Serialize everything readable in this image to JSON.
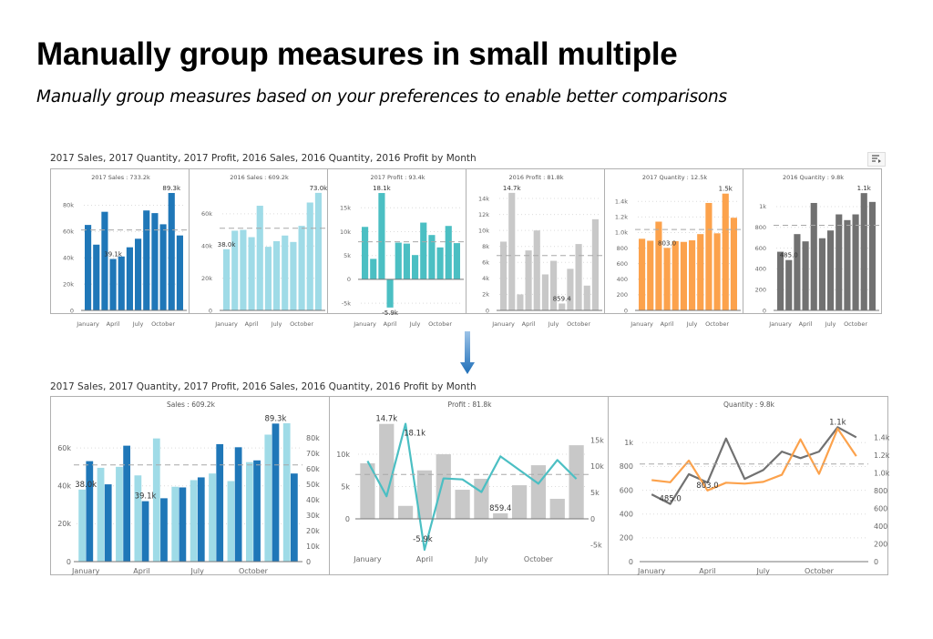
{
  "page": {
    "title": "Manually group measures in small multiple",
    "subtitle": "Manually group measures based on your preferences to enable better comparisons"
  },
  "top_visual": {
    "title": "2017 Sales, 2017 Quantity, 2017 Profit, 2016 Sales, 2016 Quantity, 2016 Profit by Month",
    "icon": "focus-mode-icon"
  },
  "arrow": {
    "icon": "arrow-down-icon",
    "color": "#1f6fb8"
  },
  "bottom_visual": {
    "title": "2017 Sales, 2017 Quantity, 2017 Profit, 2016 Sales, 2016 Quantity, 2016 Profit by Month"
  },
  "x_tick_labels": [
    {
      "index": 0,
      "label": "January"
    },
    {
      "index": 3,
      "label": "April"
    },
    {
      "index": 6,
      "label": "July"
    },
    {
      "index": 9,
      "label": "October"
    }
  ],
  "colors": {
    "sales_2017": "#1f77b8",
    "sales_2016": "#9fdbe7",
    "profit_2017": "#4bbfc3",
    "profit_2016": "#c8c8c8",
    "quantity_2017": "#fca24c",
    "quantity_2016": "#717171",
    "average_line": "#a8a8a8",
    "gridline": "#dcdcdc"
  },
  "chart_data": [
    {
      "group": "top",
      "type": "bar",
      "header": "2017 Sales :  733.2k",
      "average_line": true,
      "axes": [
        {
          "side": "left",
          "ylim": [
            0,
            90
          ],
          "ticks": [
            [
              0,
              "0"
            ],
            [
              20,
              "20k"
            ],
            [
              40,
              "40k"
            ],
            [
              60,
              "60k"
            ],
            [
              80,
              "80k"
            ]
          ]
        }
      ],
      "series": [
        {
          "name": "2017 Sales",
          "type": "bar",
          "axis": 0,
          "color": "#1f77b8",
          "values": [
            65,
            50,
            75,
            39.1,
            41,
            48,
            54.5,
            76,
            74,
            65.5,
            89.3,
            57
          ]
        }
      ],
      "data_labels": [
        {
          "series": 0,
          "index": 10,
          "text": "89.3k"
        },
        {
          "series": 0,
          "index": 3,
          "text": "39.1k"
        }
      ]
    },
    {
      "group": "top",
      "type": "bar",
      "header": "2016 Sales :  609.2k",
      "average_line": true,
      "axes": [
        {
          "side": "left",
          "ylim": [
            0,
            73.5
          ],
          "ticks": [
            [
              0,
              "0"
            ],
            [
              20,
              "20k"
            ],
            [
              40,
              "40k"
            ],
            [
              60,
              "60k"
            ]
          ]
        }
      ],
      "series": [
        {
          "name": "2016 Sales",
          "type": "bar",
          "axis": 0,
          "color": "#9fdbe7",
          "values": [
            38,
            49.5,
            50,
            45.5,
            65,
            39.5,
            43,
            46.5,
            42.5,
            52.5,
            67,
            73
          ]
        }
      ],
      "data_labels": [
        {
          "series": 0,
          "index": 11,
          "text": "73.0k"
        },
        {
          "series": 0,
          "index": 0,
          "text": "38.0k"
        }
      ]
    },
    {
      "group": "top",
      "type": "bar",
      "header": "2017 Profit :  93.4k",
      "average_line": true,
      "axes": [
        {
          "side": "left",
          "ylim": [
            -6.5,
            18.3
          ],
          "ticks": [
            [
              -5,
              "-5k"
            ],
            [
              0,
              "0"
            ],
            [
              5,
              "5k"
            ],
            [
              10,
              "10k"
            ],
            [
              15,
              "15k"
            ]
          ]
        }
      ],
      "series": [
        {
          "name": "2017 Profit",
          "type": "bar",
          "axis": 0,
          "color": "#4bbfc3",
          "values": [
            11,
            4.3,
            18.1,
            -5.9,
            7.7,
            7.5,
            5.1,
            11.9,
            9.3,
            6.7,
            11.2,
            7.6
          ]
        }
      ],
      "data_labels": [
        {
          "series": 0,
          "index": 2,
          "text": "18.1k"
        },
        {
          "series": 0,
          "index": 3,
          "text": "-5.9k"
        }
      ]
    },
    {
      "group": "top",
      "type": "bar",
      "header": "2016 Profit :  81.8k",
      "average_line": true,
      "axes": [
        {
          "side": "left",
          "ylim": [
            0,
            14.8
          ],
          "ticks": [
            [
              0,
              "0"
            ],
            [
              2,
              "2k"
            ],
            [
              4,
              "4k"
            ],
            [
              6,
              "6k"
            ],
            [
              8,
              "8k"
            ],
            [
              10,
              "10k"
            ],
            [
              12,
              "12k"
            ],
            [
              14,
              "14k"
            ]
          ]
        }
      ],
      "series": [
        {
          "name": "2016 Profit",
          "type": "bar",
          "axis": 0,
          "color": "#c8c8c8",
          "values": [
            8.6,
            14.7,
            2,
            7.5,
            10,
            4.5,
            6.2,
            0.8594,
            5.2,
            8.3,
            3.1,
            11.4
          ]
        }
      ],
      "data_labels": [
        {
          "series": 0,
          "index": 1,
          "text": "14.7k"
        },
        {
          "series": 0,
          "index": 7,
          "text": "859.4"
        }
      ]
    },
    {
      "group": "top",
      "type": "bar",
      "header": "2017 Quantity :  12.5k",
      "average_line": true,
      "axes": [
        {
          "side": "left",
          "ylim": [
            0,
            1520
          ],
          "ticks": [
            [
              0,
              "0"
            ],
            [
              200,
              "200"
            ],
            [
              400,
              "400"
            ],
            [
              600,
              "600"
            ],
            [
              800,
              "800"
            ],
            [
              1000,
              "1.0k"
            ],
            [
              1200,
              "1.2k"
            ],
            [
              1400,
              "1.4k"
            ]
          ]
        }
      ],
      "series": [
        {
          "name": "2017 Quantity",
          "type": "bar",
          "axis": 0,
          "color": "#fca24c",
          "values": [
            920,
            895,
            1140,
            803,
            890,
            880,
            900,
            980,
            1380,
            990,
            1500,
            1190
          ]
        }
      ],
      "data_labels": [
        {
          "series": 0,
          "index": 10,
          "text": "1.5k"
        },
        {
          "series": 0,
          "index": 3,
          "text": "803.0"
        }
      ]
    },
    {
      "group": "top",
      "type": "bar",
      "header": "2016 Quantity :  9.8k",
      "average_line": true,
      "axes": [
        {
          "side": "left",
          "ylim": [
            0,
            1140
          ],
          "ticks": [
            [
              0,
              "0"
            ],
            [
              200,
              "200"
            ],
            [
              400,
              "400"
            ],
            [
              600,
              "600"
            ],
            [
              800,
              "800"
            ],
            [
              1000,
              "1k"
            ]
          ]
        }
      ],
      "series": [
        {
          "name": "2016 Quantity",
          "type": "bar",
          "axis": 0,
          "color": "#717171",
          "values": [
            565,
            485,
            735,
            665,
            1035,
            695,
            770,
            925,
            870,
            925,
            1130,
            1045
          ]
        }
      ],
      "data_labels": [
        {
          "series": 0,
          "index": 10,
          "text": "1.1k"
        },
        {
          "series": 0,
          "index": 1,
          "text": "485.0"
        }
      ]
    },
    {
      "group": "bottom",
      "type": "bar",
      "header": "Sales :  609.2k",
      "average_line": true,
      "axes": [
        {
          "side": "left",
          "ylim": [
            0,
            73
          ],
          "ticks": [
            [
              0,
              "0"
            ],
            [
              20,
              "20k"
            ],
            [
              40,
              "40k"
            ],
            [
              60,
              "60k"
            ]
          ]
        },
        {
          "side": "right",
          "ylim": [
            0,
            89.5
          ],
          "ticks": [
            [
              0,
              "0"
            ],
            [
              10,
              "10k"
            ],
            [
              20,
              "20k"
            ],
            [
              30,
              "30k"
            ],
            [
              40,
              "40k"
            ],
            [
              50,
              "50k"
            ],
            [
              60,
              "60k"
            ],
            [
              70,
              "70k"
            ],
            [
              80,
              "80k"
            ]
          ]
        }
      ],
      "series": [
        {
          "name": "2016 Sales",
          "type": "bar",
          "axis": 0,
          "color": "#9fdbe7",
          "values": [
            38,
            49.5,
            50,
            45.5,
            65,
            39.5,
            43,
            46.5,
            42.5,
            52.5,
            67,
            73
          ]
        },
        {
          "name": "2017 Sales",
          "type": "bar",
          "axis": 1,
          "color": "#1f77b8",
          "values": [
            65,
            50,
            75,
            39.1,
            41,
            48,
            54.5,
            76,
            74,
            65.5,
            89.3,
            57
          ]
        }
      ],
      "data_labels": [
        {
          "series": 0,
          "index": 0,
          "text": "38.0k"
        },
        {
          "series": 1,
          "index": 3,
          "text": "39.1k"
        },
        {
          "series": 1,
          "index": 10,
          "text": "89.3k"
        }
      ]
    },
    {
      "group": "bottom",
      "type": "bar+line",
      "header": "Profit :  81.8k",
      "average_line": true,
      "axes": [
        {
          "side": "left",
          "ylim": [
            -4.8,
            14.8
          ],
          "ticks": [
            [
              0,
              "0"
            ],
            [
              5,
              "5k"
            ],
            [
              10,
              "10k"
            ]
          ]
        },
        {
          "side": "right",
          "ylim": [
            -5.9,
            18.2
          ],
          "ticks": [
            [
              -5,
              "-5k"
            ],
            [
              0,
              "0"
            ],
            [
              5,
              "5k"
            ],
            [
              10,
              "10k"
            ],
            [
              15,
              "15k"
            ]
          ]
        }
      ],
      "series": [
        {
          "name": "2016 Profit",
          "type": "bar",
          "axis": 0,
          "color": "#c8c8c8",
          "values": [
            8.6,
            14.7,
            2,
            7.5,
            10,
            4.5,
            6.2,
            0.8594,
            5.2,
            8.3,
            3.1,
            11.4
          ]
        },
        {
          "name": "2017 Profit",
          "type": "line",
          "axis": 1,
          "color": "#4bbfc3",
          "values": [
            11,
            4.3,
            18.1,
            -5.9,
            7.7,
            7.5,
            5.1,
            11.9,
            9.3,
            6.7,
            11.2,
            7.6
          ]
        }
      ],
      "data_labels": [
        {
          "series": 0,
          "index": 1,
          "text": "14.7k"
        },
        {
          "series": 1,
          "index": 2,
          "text": "18.1k"
        },
        {
          "series": 1,
          "index": 3,
          "text": "-5.9k"
        },
        {
          "series": 0,
          "index": 7,
          "text": "859.4"
        }
      ]
    },
    {
      "group": "bottom",
      "type": "line",
      "header": "Quantity :  9.8k",
      "average_line": true,
      "axes": [
        {
          "side": "left",
          "ylim": [
            0,
            1140
          ],
          "ticks": [
            [
              0,
              "0"
            ],
            [
              200,
              "200"
            ],
            [
              400,
              "400"
            ],
            [
              600,
              "600"
            ],
            [
              800,
              "800"
            ],
            [
              1000,
              "1k"
            ]
          ]
        },
        {
          "side": "right",
          "ylim": [
            0,
            1530
          ],
          "ticks": [
            [
              0,
              "0"
            ],
            [
              200,
              "200"
            ],
            [
              400,
              "400"
            ],
            [
              600,
              "600"
            ],
            [
              800,
              "800"
            ],
            [
              1000,
              "1.0k"
            ],
            [
              1200,
              "1.2k"
            ],
            [
              1400,
              "1.4k"
            ]
          ]
        }
      ],
      "series": [
        {
          "name": "2016 Quantity",
          "type": "line",
          "axis": 0,
          "color": "#717171",
          "values": [
            565,
            485,
            735,
            665,
            1035,
            695,
            770,
            925,
            870,
            925,
            1130,
            1045
          ]
        },
        {
          "name": "2017 Quantity",
          "type": "line",
          "axis": 1,
          "color": "#fca24c",
          "values": [
            920,
            895,
            1140,
            803,
            890,
            880,
            900,
            980,
            1380,
            990,
            1500,
            1190
          ]
        }
      ],
      "data_labels": [
        {
          "series": 0,
          "index": 1,
          "text": "485.0"
        },
        {
          "series": 1,
          "index": 3,
          "text": "803.0"
        },
        {
          "series": 0,
          "index": 10,
          "text": "1.1k"
        }
      ]
    }
  ]
}
